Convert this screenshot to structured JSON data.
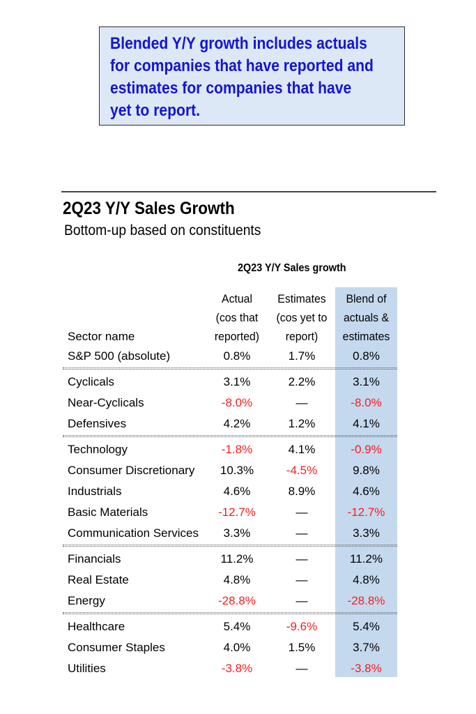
{
  "callout": {
    "line1": "Blended Y/Y growth includes actuals",
    "line2": "for companies that have reported and",
    "line3": "estimates for companies that have",
    "line4": "yet to report."
  },
  "title": "2Q23 Y/Y Sales Growth",
  "subtitle": "Bottom-up based on constituents",
  "table": {
    "group_header": "2Q23 Y/Y Sales growth",
    "columns": {
      "sector": "Sector name",
      "actual": [
        "Actual",
        "(cos that",
        "reported)"
      ],
      "estimates": [
        "Estimates",
        "(cos yet to",
        "report)"
      ],
      "blend": [
        "Blend of",
        "actuals &",
        "estimates"
      ]
    },
    "rows": [
      {
        "name": "S&P 500 (absolute)",
        "actual": "0.8%",
        "estimates": "1.7%",
        "blend": "0.8%"
      },
      {
        "name": "Cyclicals",
        "actual": "3.1%",
        "estimates": "2.2%",
        "blend": "3.1%"
      },
      {
        "name": "Near-Cyclicals",
        "actual": "-8.0%",
        "estimates": "—",
        "blend": "-8.0%"
      },
      {
        "name": "Defensives",
        "actual": "4.2%",
        "estimates": "1.2%",
        "blend": "4.1%"
      },
      {
        "name": "Technology",
        "actual": "-1.8%",
        "estimates": "4.1%",
        "blend": "-0.9%"
      },
      {
        "name": "Consumer Discretionary",
        "actual": "10.3%",
        "estimates": "-4.5%",
        "blend": "9.8%"
      },
      {
        "name": "Industrials",
        "actual": "4.6%",
        "estimates": "8.9%",
        "blend": "4.6%"
      },
      {
        "name": "Basic Materials",
        "actual": "-12.7%",
        "estimates": "—",
        "blend": "-12.7%"
      },
      {
        "name": "Communication Services",
        "actual": "3.3%",
        "estimates": "—",
        "blend": "3.3%"
      },
      {
        "name": "Financials",
        "actual": "11.2%",
        "estimates": "—",
        "blend": "11.2%"
      },
      {
        "name": "Real Estate",
        "actual": "4.8%",
        "estimates": "—",
        "blend": "4.8%"
      },
      {
        "name": "Energy",
        "actual": "-28.8%",
        "estimates": "—",
        "blend": "-28.8%"
      },
      {
        "name": "Healthcare",
        "actual": "5.4%",
        "estimates": "-9.6%",
        "blend": "5.4%"
      },
      {
        "name": "Consumer Staples",
        "actual": "4.0%",
        "estimates": "1.5%",
        "blend": "3.7%"
      },
      {
        "name": "Utilities",
        "actual": "-3.8%",
        "estimates": "—",
        "blend": "-3.8%"
      }
    ]
  },
  "colors": {
    "negative": "#ff1a1a",
    "blend_highlight": "#c5d9ee",
    "callout_text": "#1414d8",
    "callout_bg": "#dde8f6"
  }
}
